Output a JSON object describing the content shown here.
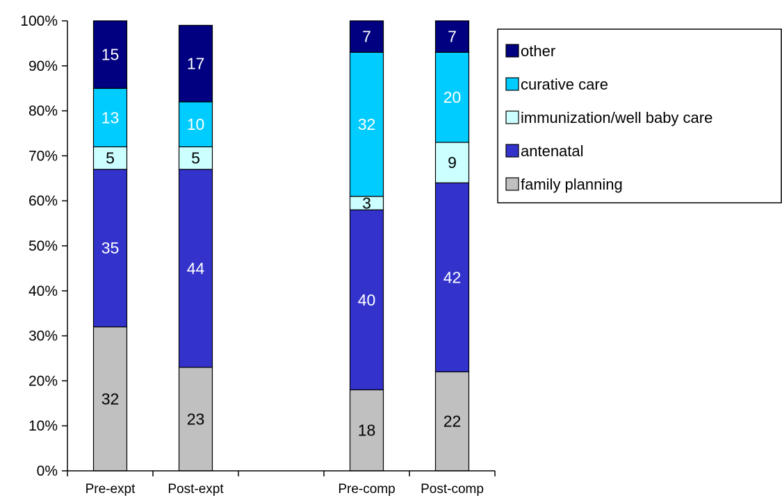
{
  "chart_data": {
    "type": "bar",
    "stacked": true,
    "percent_axis": true,
    "categories": [
      "Pre-expt",
      "Post-expt",
      "",
      "Pre-comp",
      "Post-comp"
    ],
    "ylim": [
      0,
      100
    ],
    "y_ticks": [
      "0%",
      "10%",
      "20%",
      "30%",
      "40%",
      "50%",
      "60%",
      "70%",
      "80%",
      "90%",
      "100%"
    ],
    "grid": false,
    "legend_position": "top-right",
    "series": [
      {
        "name": "family planning",
        "color": "#C0C0C0",
        "label_color": "#000000",
        "values": [
          32,
          23,
          null,
          18,
          22
        ],
        "labels": [
          "32",
          "23",
          "",
          "18",
          "22"
        ]
      },
      {
        "name": "antenatal",
        "color": "#3333CC",
        "label_color": "#FFFFFF",
        "values": [
          35,
          44,
          null,
          40,
          42
        ],
        "labels": [
          "35",
          "44",
          "",
          "40",
          "42"
        ]
      },
      {
        "name": "immunization/well baby care",
        "color": "#CCFFFF",
        "label_color": "#000000",
        "values": [
          5,
          5,
          null,
          3,
          9
        ],
        "labels": [
          "5",
          "5",
          "",
          "3",
          "9"
        ]
      },
      {
        "name": "curative care",
        "color": "#00CCFF",
        "label_color": "#FFFFFF",
        "values": [
          13,
          10,
          null,
          32,
          20
        ],
        "labels": [
          "13",
          "10",
          "",
          "32",
          "20"
        ]
      },
      {
        "name": "other",
        "color": "#000080",
        "label_color": "#FFFFFF",
        "values": [
          15,
          17,
          null,
          7,
          7
        ],
        "labels": [
          "15",
          "17",
          "",
          "7",
          "7"
        ]
      }
    ],
    "legend_order": [
      "other",
      "curative care",
      "immunization/well baby care",
      "antenatal",
      "family planning"
    ]
  }
}
